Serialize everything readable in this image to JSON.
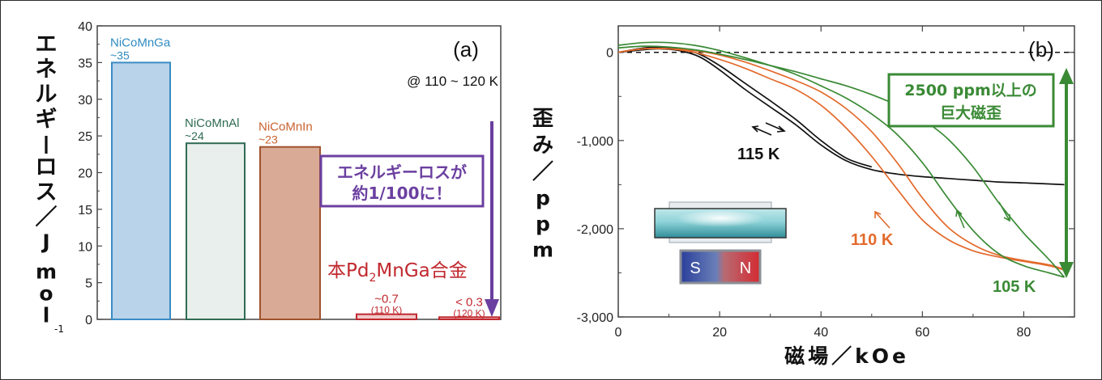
{
  "chart_data": [
    {
      "type": "bar",
      "panel_label": "(a)",
      "condition": "@ 110 ~ 120 K",
      "ylabel_parts": [
        "エネルギーロス／J mol",
        "-1"
      ],
      "ylim": [
        0,
        40
      ],
      "yticks": [
        0,
        5,
        10,
        15,
        20,
        25,
        30,
        35,
        40
      ],
      "categories": [
        "NiCoMnGa",
        "NiCoMnAl",
        "NiCoMnIn",
        "本Pd2MnGa合金 (110 K)",
        "本Pd2MnGa合金 (120 K)"
      ],
      "values": [
        35,
        24,
        23.5,
        0.7,
        0.3
      ],
      "bars": [
        {
          "name": "NiCoMnGa",
          "value_label": "~35",
          "value": 35,
          "fill": "#b8d3ea",
          "stroke": "#3a8cc4",
          "text_color": "#2e8bc0"
        },
        {
          "name": "NiCoMnAl",
          "value_label": "~24",
          "value": 24,
          "fill": "#e9efed",
          "stroke": "#2f6b53",
          "text_color": "#2f6b53"
        },
        {
          "name": "NiCoMnIn",
          "value_label": "~23",
          "value": 23.5,
          "fill": "#d9ab96",
          "stroke": "#a0522d",
          "text_color": "#c9622f"
        },
        {
          "name": "",
          "value_label": "~0.7",
          "sub_label": "(110 K)",
          "value": 0.7,
          "fill": "#f0c9c9",
          "stroke": "#c0282e",
          "text_color": "#c0282e"
        },
        {
          "name": "",
          "value_label": "< 0.3",
          "sub_label": "(120 K)",
          "value": 0.3,
          "fill": "#f0c9c9",
          "stroke": "#c0282e",
          "text_color": "#c0282e"
        }
      ],
      "alloy_label": {
        "main": "本Pd",
        "sub": "2",
        "rest": "MnGa合金"
      },
      "callout_lines": [
        "エネルギーロスが",
        "約1/100に！"
      ],
      "colors": {
        "purple": "#6b3fa0",
        "red": "#c0282e"
      }
    },
    {
      "type": "line",
      "panel_label": "(b)",
      "xlabel": "磁場／kOe",
      "ylabel": "歪み／ppm",
      "xlim": [
        0,
        90
      ],
      "ylim": [
        -3000,
        300
      ],
      "xticks": [
        0,
        20,
        40,
        60,
        80
      ],
      "xtick_labels": [
        "0",
        "20",
        "40",
        "60",
        "80"
      ],
      "yticks": [
        0,
        -1000,
        -2000,
        -3000
      ],
      "ytick_labels": [
        "0",
        "-1,000",
        "-2,000",
        "-3,000"
      ],
      "callout_lines": [
        "2500 ppm以上の",
        "巨大磁歪"
      ],
      "magnet_labels": [
        "S",
        "N"
      ],
      "series": [
        {
          "name": "115 K",
          "color": "#111111",
          "x": [
            0,
            5,
            8,
            12,
            16,
            20,
            25,
            30,
            35,
            40,
            45,
            50,
            55,
            60,
            65,
            70,
            75,
            80,
            88
          ],
          "y": [
            0,
            30,
            40,
            20,
            -50,
            -200,
            -420,
            -620,
            -820,
            -1050,
            -1230,
            -1330,
            -1380,
            -1410,
            -1430,
            -1450,
            -1470,
            -1480,
            -1500
          ]
        },
        {
          "name": "",
          "color": "#111111",
          "x": [
            0,
            5,
            8,
            12,
            16,
            20,
            25,
            30,
            35,
            40,
            45,
            50
          ],
          "y": [
            0,
            50,
            60,
            40,
            -20,
            -150,
            -350,
            -550,
            -760,
            -1000,
            -1200,
            -1300
          ]
        },
        {
          "name": "110 K",
          "color": "#e36a2c",
          "x": [
            0,
            5,
            10,
            15,
            20,
            25,
            30,
            35,
            40,
            45,
            50,
            55,
            60,
            65,
            70,
            75,
            80,
            85,
            88
          ],
          "y": [
            0,
            40,
            40,
            0,
            -80,
            -180,
            -300,
            -420,
            -600,
            -860,
            -1180,
            -1550,
            -1900,
            -2120,
            -2250,
            -2320,
            -2370,
            -2420,
            -2470
          ]
        },
        {
          "name": "",
          "color": "#e36a2c",
          "x": [
            0,
            5,
            10,
            15,
            20,
            25,
            30,
            35,
            40,
            45,
            50,
            55,
            60,
            65,
            70,
            75,
            80,
            85,
            88
          ],
          "y": [
            0,
            40,
            40,
            20,
            -30,
            -110,
            -210,
            -320,
            -450,
            -640,
            -900,
            -1250,
            -1650,
            -1980,
            -2180,
            -2300,
            -2360,
            -2410,
            -2460
          ]
        },
        {
          "name": "105 K",
          "color": "#3a8a35",
          "x": [
            0,
            5,
            10,
            15,
            20,
            25,
            30,
            35,
            40,
            45,
            50,
            55,
            60,
            65,
            70,
            75,
            80,
            85,
            88
          ],
          "y": [
            80,
            110,
            110,
            80,
            20,
            -60,
            -150,
            -250,
            -380,
            -520,
            -700,
            -930,
            -1250,
            -1650,
            -2020,
            -2280,
            -2420,
            -2500,
            -2550
          ]
        },
        {
          "name": "",
          "color": "#3a8a35",
          "x": [
            0,
            5,
            10,
            15,
            20,
            25,
            30,
            35,
            40,
            45,
            50,
            55,
            60,
            65,
            70,
            75,
            80,
            85,
            88
          ],
          "y": [
            50,
            70,
            60,
            30,
            -20,
            -80,
            -150,
            -220,
            -300,
            -380,
            -480,
            -600,
            -760,
            -980,
            -1300,
            -1700,
            -2050,
            -2350,
            -2550
          ]
        }
      ],
      "arrow_color": "#3a8a35"
    }
  ]
}
